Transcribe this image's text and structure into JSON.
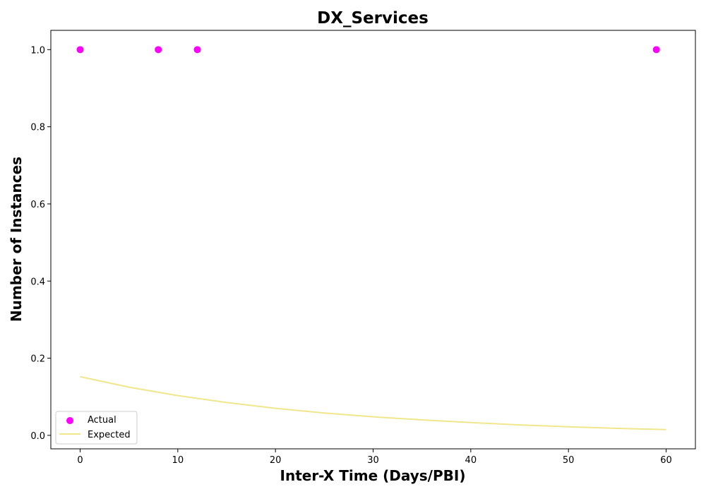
{
  "chart_data": {
    "type": "scatter",
    "title": "DX_Services",
    "xlabel": "Inter-X Time (Days/PBI)",
    "ylabel": "Number of Instances",
    "xlim": [
      -3,
      63
    ],
    "ylim": [
      -0.035,
      1.05
    ],
    "x_ticks": [
      0,
      10,
      20,
      30,
      40,
      50,
      60
    ],
    "y_ticks": [
      0.0,
      0.2,
      0.4,
      0.6,
      0.8,
      1.0
    ],
    "x_tick_labels": [
      "0",
      "10",
      "20",
      "30",
      "40",
      "50",
      "60"
    ],
    "y_tick_labels": [
      "0.0",
      "0.2",
      "0.4",
      "0.6",
      "0.8",
      "1.0"
    ],
    "grid": false,
    "legend_position": "bottom-left",
    "series": [
      {
        "name": "Actual",
        "kind": "scatter",
        "color": "#ff00ff",
        "x": [
          0,
          8,
          12,
          59
        ],
        "y": [
          1.0,
          1.0,
          1.0,
          1.0
        ]
      },
      {
        "name": "Expected",
        "kind": "line",
        "color": "#f0e68c",
        "x": [
          0,
          5,
          10,
          15,
          20,
          25,
          30,
          35,
          40,
          45,
          50,
          55,
          60
        ],
        "y": [
          0.152,
          0.125,
          0.103,
          0.085,
          0.07,
          0.058,
          0.048,
          0.04,
          0.033,
          0.027,
          0.022,
          0.018,
          0.015
        ]
      }
    ]
  }
}
